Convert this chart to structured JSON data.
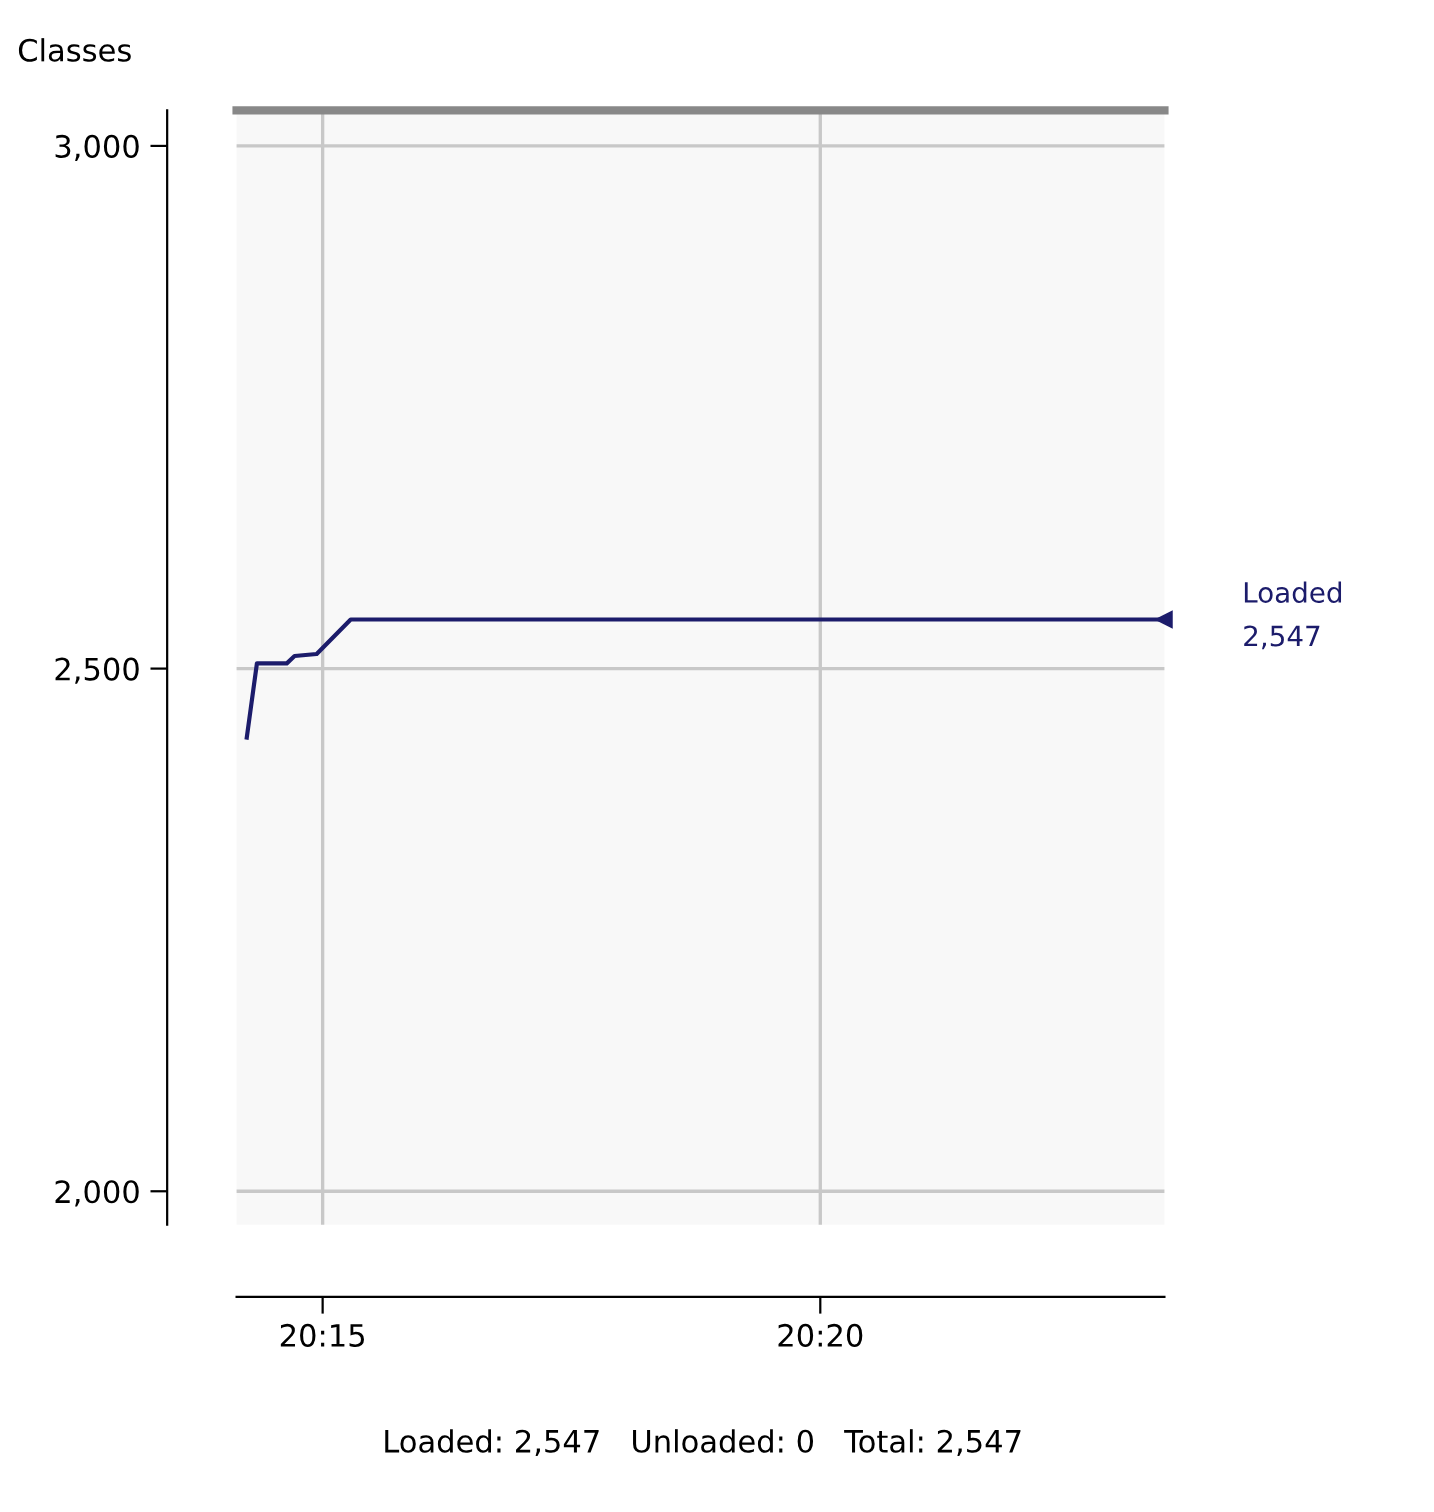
{
  "chart_data": {
    "type": "line",
    "title": "Classes",
    "x": [
      20.2373,
      20.239,
      20.244,
      20.2453,
      20.249,
      20.2547,
      20.3902
    ],
    "series": [
      {
        "name": "Loaded",
        "color": "#1c1c6b",
        "values": [
          2434,
          2505,
          2505,
          2512,
          2514,
          2547,
          2547
        ]
      }
    ],
    "xlim": [
      20.2356,
      20.3909
    ],
    "xticks": [
      {
        "value": 20.25,
        "label": "20:15"
      },
      {
        "value": 20.3333,
        "label": "20:20"
      }
    ],
    "ylim": [
      1968,
      3034
    ],
    "yticks": [
      {
        "value": 2000,
        "label": "2,000"
      },
      {
        "value": 2500,
        "label": "2,500"
      },
      {
        "value": 3000,
        "label": "3,000"
      }
    ],
    "grid": true,
    "legend": "right",
    "line_style": "solid",
    "marker": "none",
    "annotations": [
      "2,547",
      "Loaded: 2,547   Unloaded: 0   Total: 2,547"
    ]
  }
}
